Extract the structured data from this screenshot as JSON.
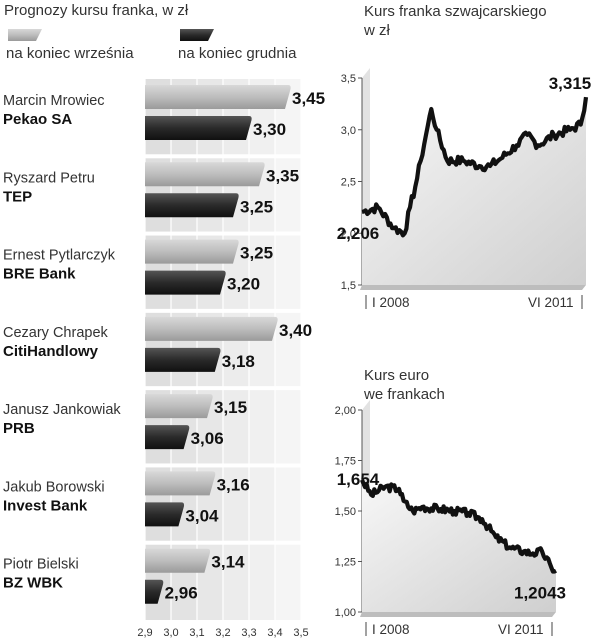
{
  "chart_data": [
    {
      "type": "bar",
      "title": "Prognozy kursu franka, w zł",
      "legend": [
        {
          "name": "na koniec września",
          "color": "#b5b5b5"
        },
        {
          "name": "na koniec grudnia",
          "color": "#1e1e1e"
        }
      ],
      "legend_placement": "top",
      "orientation": "horizontal",
      "xlim": [
        2.9,
        3.5
      ],
      "x_ticks": [
        "2,9",
        "3,0",
        "3,1",
        "3,2",
        "3,3",
        "3,4",
        "3,5"
      ],
      "x_tick_values": [
        2.9,
        3.0,
        3.1,
        3.2,
        3.3,
        3.4,
        3.5
      ],
      "grid": true,
      "categories": [
        {
          "person": "Marcin Mrowiec",
          "bank": "Pekao SA"
        },
        {
          "person": "Ryszard Petru",
          "bank": "TEP"
        },
        {
          "person": "Ernest Pytlarczyk",
          "bank": "BRE Bank"
        },
        {
          "person": "Cezary Chrapek",
          "bank": "CitiHandlowy"
        },
        {
          "person": "Janusz Jankowiak",
          "bank": "PRB"
        },
        {
          "person": "Jakub Borowski",
          "bank": "Invest Bank"
        },
        {
          "person": "Piotr Bielski",
          "bank": "BZ WBK"
        }
      ],
      "series": [
        {
          "name": "na koniec września",
          "values": [
            3.45,
            3.35,
            3.25,
            3.4,
            3.15,
            3.16,
            3.14
          ],
          "labels": [
            "3,45",
            "3,35",
            "3,25",
            "3,40",
            "3,15",
            "3,16",
            "3,14"
          ]
        },
        {
          "name": "na koniec grudnia",
          "values": [
            3.3,
            3.25,
            3.2,
            3.18,
            3.06,
            3.04,
            2.96
          ],
          "labels": [
            "3,30",
            "3,25",
            "3,20",
            "3,18",
            "3,06",
            "3,04",
            "2,96"
          ]
        }
      ]
    },
    {
      "type": "area",
      "title_lines": [
        "Kurs franka szwajcarskiego",
        "w zł"
      ],
      "ylim": [
        1.5,
        3.5
      ],
      "y_ticks": [
        "1,5",
        "2,0",
        "2,5",
        "3,0",
        "3,5"
      ],
      "y_tick_values": [
        1.5,
        2.0,
        2.5,
        3.0,
        3.5
      ],
      "x_labels": [
        "I 2008",
        "VI 2011"
      ],
      "start_label": "2,206",
      "end_label": "3,315",
      "x": [
        "2008-01",
        "2008-04",
        "2008-07",
        "2008-09",
        "2008-10",
        "2008-11",
        "2008-12",
        "2009-01",
        "2009-02",
        "2009-03",
        "2009-05",
        "2009-08",
        "2009-11",
        "2010-01",
        "2010-03",
        "2010-06",
        "2010-08",
        "2010-10",
        "2011-01",
        "2011-04",
        "2011-06",
        "2011-07"
      ],
      "values": [
        2.206,
        2.25,
        2.05,
        2.0,
        2.25,
        2.45,
        2.7,
        2.95,
        3.2,
        3.0,
        2.7,
        2.7,
        2.65,
        2.65,
        2.72,
        2.85,
        2.95,
        2.85,
        2.95,
        3.0,
        3.05,
        3.315
      ]
    },
    {
      "type": "area",
      "title_lines": [
        "Kurs euro",
        "we frankach"
      ],
      "ylim": [
        1.0,
        2.0
      ],
      "y_ticks": [
        "1,00",
        "1,25",
        "1,50",
        "1,75",
        "2,00"
      ],
      "y_tick_values": [
        1.0,
        1.25,
        1.5,
        1.75,
        2.0
      ],
      "x_labels": [
        "I 2008",
        "VI 2011"
      ],
      "start_label": "1,654",
      "end_label": "1,2043",
      "x": [
        "2008-01",
        "2008-03",
        "2008-06",
        "2008-09",
        "2008-10",
        "2008-12",
        "2009-02",
        "2009-06",
        "2009-09",
        "2009-12",
        "2010-03",
        "2010-06",
        "2010-09",
        "2010-12",
        "2011-02",
        "2011-04",
        "2011-06",
        "2011-07"
      ],
      "values": [
        1.654,
        1.58,
        1.62,
        1.61,
        1.55,
        1.5,
        1.52,
        1.51,
        1.5,
        1.49,
        1.46,
        1.37,
        1.32,
        1.3,
        1.29,
        1.3,
        1.22,
        1.2043
      ]
    }
  ]
}
